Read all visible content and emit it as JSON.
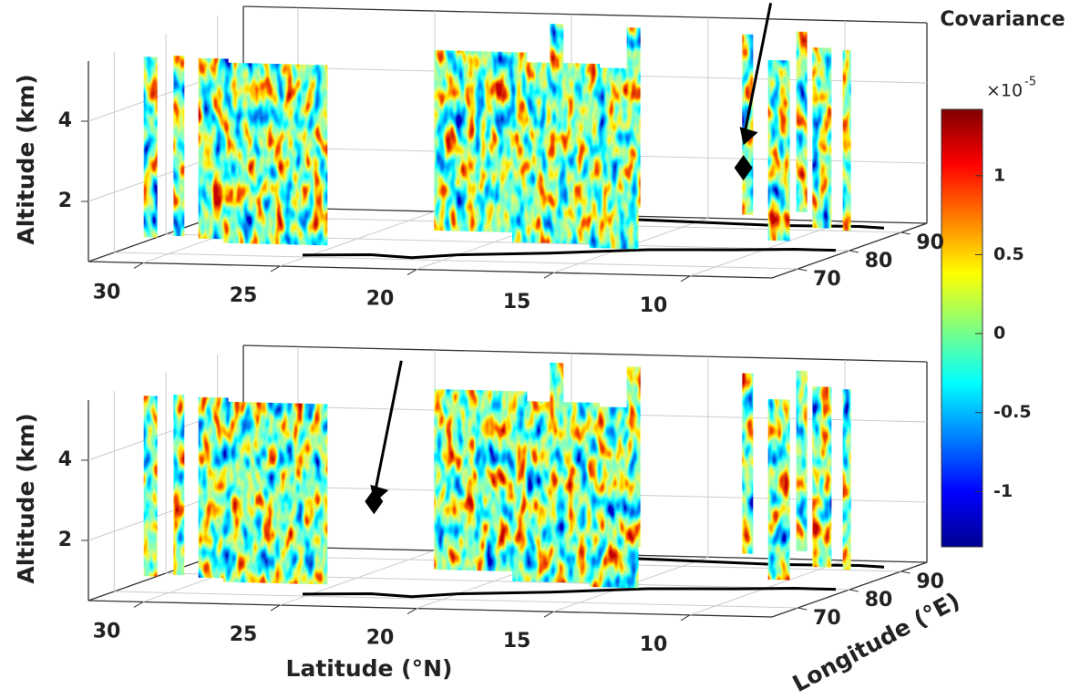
{
  "chart_data": [
    {
      "type": "slice3d",
      "zlabel": "Altitude (km)",
      "xlim": [
        32,
        7
      ],
      "xticks": [
        30,
        25,
        20,
        15,
        10
      ],
      "ylim": [
        65,
        95
      ],
      "yticks": [
        70,
        80,
        90
      ],
      "zlim": [
        0.5,
        5.5
      ],
      "zticks": [
        2,
        4
      ],
      "grid": true
    },
    {
      "type": "slice3d",
      "zlabel": "Altitude (km)",
      "xlabel": "Latitude (°N)",
      "ylabel": "Longitude (°E)",
      "xlim": [
        32,
        7
      ],
      "xticks": [
        30,
        25,
        20,
        15,
        10
      ],
      "ylim": [
        65,
        95
      ],
      "yticks": [
        70,
        80,
        90
      ],
      "zlim": [
        0.5,
        5.5
      ],
      "zticks": [
        2,
        4
      ],
      "grid": true
    }
  ],
  "colorbar": {
    "title": "Covariance",
    "multiplier": "×10",
    "exponent": -5,
    "lim": [
      -1.35,
      1.42
    ],
    "ticks": [
      -1,
      -0.5,
      0,
      0.5,
      1
    ]
  }
}
